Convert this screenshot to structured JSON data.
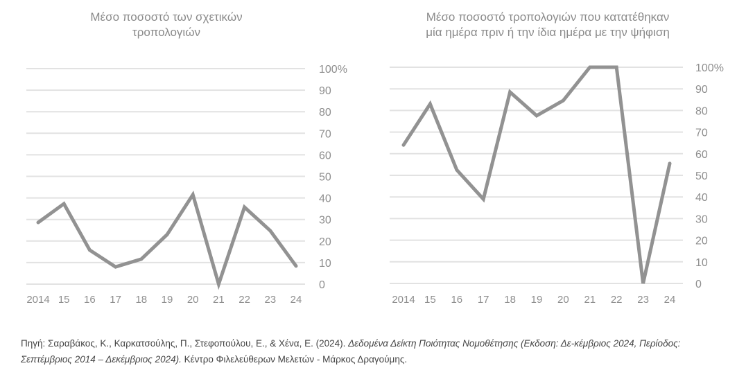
{
  "chart_data": [
    {
      "type": "line",
      "title": "Μέσο ποσοστό των σχετικών τροπολογιών",
      "categories": [
        "2014",
        "15",
        "16",
        "17",
        "18",
        "19",
        "20",
        "21",
        "22",
        "23",
        "24"
      ],
      "values": [
        28.6,
        37.3,
        15.8,
        8,
        11.6,
        23,
        41.5,
        0,
        35.7,
        24.8,
        8.4
      ],
      "yticks": [
        "0",
        "10",
        "20",
        "30",
        "40",
        "50",
        "60",
        "70",
        "80",
        "90",
        "100%"
      ],
      "ylim": [
        0,
        100
      ],
      "xlabel": "",
      "ylabel": "",
      "grid": true,
      "line_color": "#929292"
    },
    {
      "type": "line",
      "title": "Μέσο ποσοστό τροπολογιών που κατατέθηκαν μία ημέρα πριν ή την ίδια ημέρα με την ψήφιση",
      "categories": [
        "2014",
        "15",
        "16",
        "17",
        "18",
        "19",
        "20",
        "21",
        "22",
        "23",
        "24"
      ],
      "values": [
        64,
        83,
        52.5,
        39,
        88.5,
        77.6,
        84.6,
        100,
        100,
        0,
        55.5
      ],
      "yticks": [
        "0",
        "10",
        "20",
        "30",
        "40",
        "50",
        "60",
        "70",
        "80",
        "90",
        "100%"
      ],
      "ylim": [
        0,
        100
      ],
      "xlabel": "",
      "ylabel": "",
      "grid": true,
      "line_color": "#929292"
    }
  ],
  "titles": {
    "left_line1": "Μέσο ποσοστό των σχετικών",
    "left_line2": "τροπολογιών",
    "right_line1": "Μέσο ποσοστό τροπολογιών που κατατέθηκαν",
    "right_line2": "μία ημέρα πριν ή την ίδια ημέρα με την ψήφιση"
  },
  "source": {
    "prefix": "Πηγή: Σαραβάκος, Κ., Καρκατσούλης, Π., Στεφοπούλου, Ε., & Χένα, Ε. (2024). ",
    "italic": "Δεδομένα Δείκτη Ποιότητας Νομοθέτησης (Εκδοση: Δε-κέμβριος 2024, Περίοδος: Σεπτέμβριος 2014 – Δεκέμβριος 2024).",
    "suffix": " Κέντρο Φιλελεύθερων Μελετών - Μάρκος Δραγούμης."
  }
}
